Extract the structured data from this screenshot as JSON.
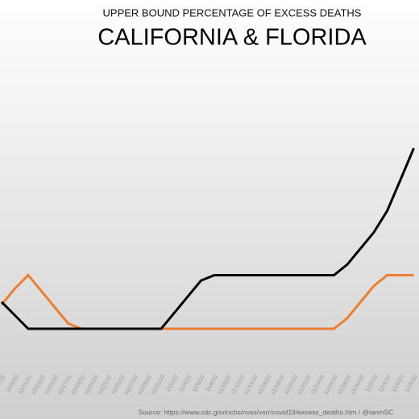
{
  "chart_data": {
    "type": "line",
    "title": "UPPER BOUND PERCENTAGE OF EXCESS DEATHS",
    "subtitle": "CALIFORNIA & FLORIDA",
    "source": "Source: https://www.cdc.gov/nchs/nvss/vsrr/covid19/excess_deaths.htm / @ianmSC",
    "categories": [
      "10/7/20",
      "10/9/20",
      "10/11/20",
      "10/13/20",
      "10/15/20",
      "10/17/20",
      "10/19/20",
      "10/21/20",
      "10/23/20",
      "10/25/20",
      "10/27/20",
      "10/29/20",
      "10/31/20",
      "11/2/20",
      "11/4/20",
      "11/6/20",
      "11/8/20",
      "11/10/20",
      "11/12/20",
      "11/14/20",
      "11/16/20",
      "11/18/20",
      "11/20/20",
      "11/22/20",
      "11/24/20",
      "11/26/20",
      "11/28/20",
      "11/30/20",
      "12/2/20",
      "12/4/20",
      "12/6/20",
      "12/8/20"
    ],
    "series": [
      {
        "color": "#000000",
        "values": [
          1.5,
          1.25,
          1,
          1,
          1,
          1,
          1,
          1,
          1,
          1,
          1,
          1,
          1,
          1.3,
          1.6,
          1.9,
          2,
          2,
          2,
          2,
          2,
          2,
          2,
          2,
          2,
          2,
          2.2,
          2.5,
          2.8,
          3.2,
          3.78,
          4.37
        ]
      },
      {
        "color": "#ed7d31",
        "values": [
          1.45,
          1.75,
          2,
          1.7,
          1.4,
          1.1,
          1,
          1,
          1,
          1,
          1,
          1,
          1,
          1,
          1,
          1,
          1,
          1,
          1,
          1,
          1,
          1,
          1,
          1,
          1,
          1,
          1.2,
          1.5,
          1.8,
          2,
          2,
          2
        ]
      }
    ],
    "ylim": [
      0,
      6
    ]
  }
}
